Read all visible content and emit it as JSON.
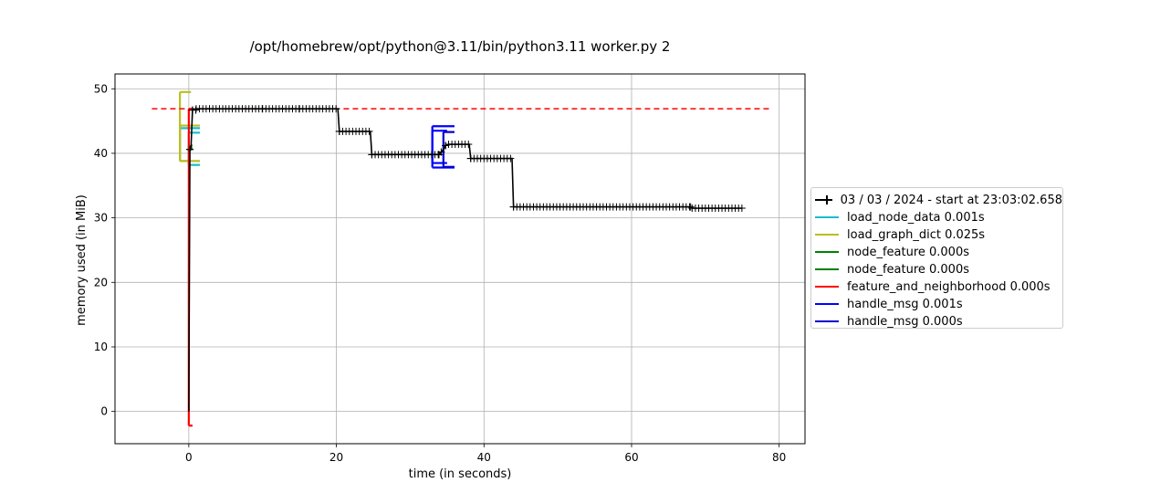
{
  "chart_data": {
    "type": "line",
    "title": "/opt/homebrew/opt/python@3.11/bin/python3.11 worker.py 2",
    "xlabel": "time (in seconds)",
    "ylabel": "memory used (in MiB)",
    "xlim": [
      -10,
      83.5
    ],
    "ylim": [
      -5,
      52.3
    ],
    "xticks": [
      0,
      20,
      40,
      60,
      80
    ],
    "yticks": [
      0,
      10,
      20,
      30,
      40,
      50
    ],
    "grid": true,
    "legend_position": "right, outside plot",
    "series": [
      {
        "name": "03 / 03 / 2024 - start at 23:03:02.658",
        "color": "#000000",
        "marker": "+",
        "points": [
          [
            0,
            0
          ],
          [
            0.15,
            40.6
          ],
          [
            0.3,
            41.0
          ],
          [
            0.5,
            46.7
          ],
          [
            1,
            46.9
          ],
          [
            5,
            46.9
          ],
          [
            10,
            46.9
          ],
          [
            15,
            46.9
          ],
          [
            20.2,
            46.9
          ],
          [
            20.4,
            43.4
          ],
          [
            24.6,
            43.4
          ],
          [
            24.8,
            39.8
          ],
          [
            33.9,
            39.8
          ],
          [
            34.2,
            40.2
          ],
          [
            34.5,
            40.6
          ],
          [
            34.8,
            41.2
          ],
          [
            35.2,
            41.4
          ],
          [
            38.0,
            41.4
          ],
          [
            38.2,
            39.2
          ],
          [
            43.8,
            39.2
          ],
          [
            44.0,
            31.7
          ],
          [
            68.0,
            31.7
          ],
          [
            68.2,
            31.5
          ],
          [
            75.0,
            31.5
          ]
        ]
      }
    ],
    "function_spans": [
      {
        "name": "load_node_data 0.001s",
        "color": "#17becf",
        "brackets": [
          {
            "x_start": -1.2,
            "x_end": 1.5,
            "y_low": 38.8,
            "y_high": 43.9
          },
          {
            "x_start": 0.0,
            "x_end": 1.5,
            "y_low": 38.2,
            "y_high": 43.2
          }
        ]
      },
      {
        "name": "load_graph_dict 0.025s",
        "color": "#bcbd22",
        "brackets": [
          {
            "x_start": -1.2,
            "x_end": 0.3,
            "y_low": 38.8,
            "y_high": 49.5
          },
          {
            "x_start": -1.2,
            "x_end": 1.5,
            "y_low": 38.8,
            "y_high": 44.3
          }
        ]
      },
      {
        "name": "node_feature 0.000s",
        "color": "#008000",
        "brackets": [
          {
            "x_start": 0.0,
            "x_end": 0.4,
            "y_low": 40.6,
            "y_high": 41.0
          }
        ]
      },
      {
        "name": "node_feature 0.000s",
        "color": "#008000",
        "brackets": [
          {
            "x_start": 0.2,
            "x_end": 0.5,
            "y_low": 40.8,
            "y_high": 41.2
          }
        ]
      },
      {
        "name": "feature_and_neighborhood 0.000s",
        "color": "#ff0000",
        "brackets": [
          {
            "x_start": 0.0,
            "x_end": 0.5,
            "y_low": -2.2,
            "y_high": 46.9
          }
        ]
      },
      {
        "name": "handle_msg 0.001s",
        "color": "#0000ff",
        "brackets": [
          {
            "x_start": 33.0,
            "x_end": 36.0,
            "y_low": 37.8,
            "y_high": 44.2
          },
          {
            "x_start": 33.0,
            "x_end": 35.0,
            "y_low": 38.5,
            "y_high": 43.5
          }
        ]
      },
      {
        "name": "handle_msg 0.000s",
        "color": "#0000cd",
        "brackets": [
          {
            "x_start": 34.5,
            "x_end": 36.0,
            "y_low": 37.9,
            "y_high": 43.3
          }
        ]
      }
    ],
    "reference_line": {
      "y": 46.9,
      "x_start": -5,
      "x_end": 79,
      "color": "#ff0000",
      "style": "dashed"
    }
  },
  "legend": {
    "items": [
      {
        "label": "03 / 03 / 2024 - start at 23:03:02.658",
        "color": "#000000",
        "marker": "+"
      },
      {
        "label": "load_node_data 0.001s",
        "color": "#17becf"
      },
      {
        "label": "load_graph_dict 0.025s",
        "color": "#bcbd22"
      },
      {
        "label": "node_feature 0.000s",
        "color": "#008000"
      },
      {
        "label": "node_feature 0.000s",
        "color": "#008000"
      },
      {
        "label": "feature_and_neighborhood 0.000s",
        "color": "#ff0000"
      },
      {
        "label": "handle_msg 0.001s",
        "color": "#0000ff"
      },
      {
        "label": "handle_msg 0.000s",
        "color": "#0000cd"
      }
    ]
  }
}
